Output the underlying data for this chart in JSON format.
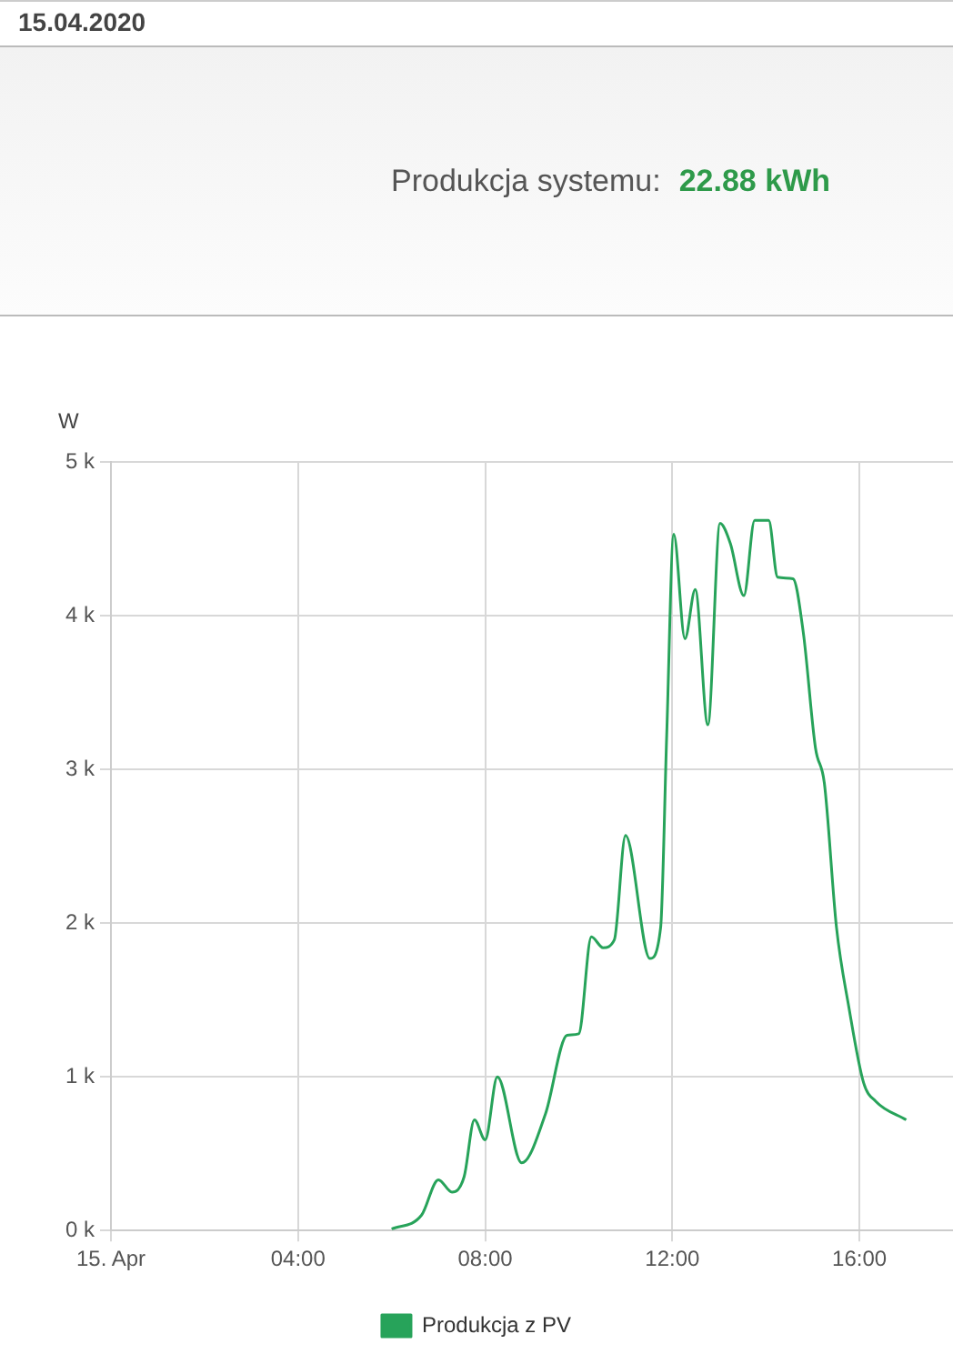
{
  "chart_data": {
    "type": "line",
    "title": "15.04.2020",
    "annotations": [
      "Produkcja systemu:",
      "22.88 kWh"
    ],
    "ylabel": "W",
    "x": [
      6.0,
      6.64,
      7.0,
      7.29,
      7.55,
      7.77,
      8.0,
      8.26,
      8.78,
      9.29,
      9.75,
      10.0,
      10.27,
      10.52,
      10.76,
      11.0,
      11.52,
      11.75,
      11.88,
      12.03,
      12.27,
      12.49,
      12.76,
      13.02,
      13.24,
      13.53,
      13.76,
      14.06,
      14.25,
      14.58,
      14.8,
      15.06,
      15.25,
      15.51,
      15.77,
      16.09,
      16.35,
      17.0
    ],
    "series": [
      {
        "name": "Produkcja z PV",
        "color": "#27a35a",
        "values": [
          10,
          100,
          330,
          250,
          350,
          720,
          590,
          1000,
          440,
          760,
          1270,
          1280,
          1910,
          1840,
          1890,
          2570,
          1770,
          1970,
          3220,
          4530,
          3850,
          4170,
          3290,
          4600,
          4470,
          4130,
          4620,
          4620,
          4250,
          4240,
          3890,
          3140,
          2910,
          1970,
          1460,
          960,
          840,
          720
        ]
      }
    ],
    "xlim": [
      0,
      18
    ],
    "xticks": [
      {
        "value": 0,
        "label": "15. Apr"
      },
      {
        "value": 4,
        "label": "04:00"
      },
      {
        "value": 8,
        "label": "08:00"
      },
      {
        "value": 12,
        "label": "12:00"
      },
      {
        "value": 16,
        "label": "16:00"
      }
    ],
    "ylim": [
      0,
      5000
    ],
    "yticks": [
      {
        "value": 0,
        "label": "0 k"
      },
      {
        "value": 1000,
        "label": "1 k"
      },
      {
        "value": 2000,
        "label": "2 k"
      },
      {
        "value": 3000,
        "label": "3 k"
      },
      {
        "value": 4000,
        "label": "4 k"
      },
      {
        "value": 5000,
        "label": "5 k"
      }
    ],
    "grid": true,
    "legend": "bottom",
    "line_style": "solid",
    "marker": "none"
  }
}
